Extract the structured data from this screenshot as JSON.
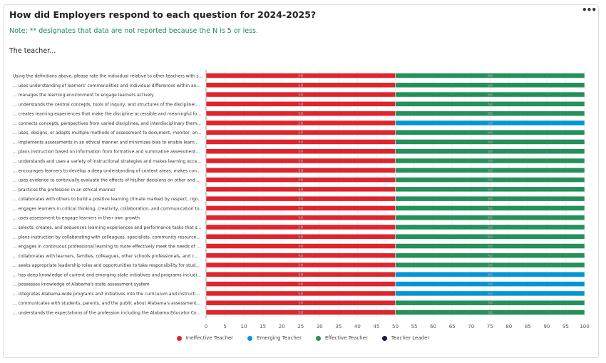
{
  "header": {
    "title": "How did Employers respond to each question for 2024-2025?",
    "note": "Note: ** designates that data are not reported because the N is 5 or less.",
    "subtitle": "The teacher...",
    "more_icon": "more-horizontal-icon"
  },
  "colors": {
    "Ineffective Teacher": "#e0242c",
    "Emerging Teacher": "#0096d6",
    "Effective Teacher": "#24905a",
    "Teacher Leader": "#141a46"
  },
  "chart_data": {
    "type": "bar",
    "orientation": "horizontal",
    "stacked": true,
    "xlim": [
      0,
      100
    ],
    "xticks": [
      0,
      5,
      10,
      15,
      20,
      25,
      30,
      35,
      40,
      45,
      50,
      55,
      60,
      65,
      70,
      75,
      80,
      85,
      90,
      95,
      100
    ],
    "grid": true,
    "legend_position": "bottom",
    "categories": [
      "Using the definitions above, please rate the individual relative to other teachers with s...",
      "... uses understanding of learners' commonalities and individual differences within an...",
      "... manages the learning environment to engage learners actively",
      "... understands the central concepts, tools of inquiry, and structures of the discipline(...",
      "... creates learning experiences that make the discipline accessible and meaningful fo...",
      "... connects concepts, perspectives from varied disciplines, and interdisciplinary them...",
      "... uses, designs, or adapts multiple methods of assessment to document, monitor, an...",
      "... implements assessments in an ethical manner and minimizes bias to enable learn...",
      "... plans instruction based on information from formative and summative assessment...",
      "... understands and uses a variety of instructional strategies and makes learning acce...",
      "... encourages learners to develop a deep understanding of content areas, makes con...",
      "... uses evidence to continually evaluate the effects of his/her decisions on other and ...",
      "... practices the profession in an ethical manner",
      "... collaborates with others to build a positive learning climate marked by respect, rigo...",
      "... engages learners in critical thinking, creativity, collaboration, and communication to...",
      "... uses assessment to engage learners in their own growth",
      "... selects, creates, and sequences learning experiences and performance tasks that s...",
      "... plans instruction by collaborating with colleagues, specialists, community resource...",
      "... engages in continuous professional learning to more effectively meet the needs of ...",
      "... collaborates with learners, families, colleagues, other schools professionals, and c...",
      "... seeks appropriate leadership roles and opportunities to take responsibility for stud...",
      "... has deep knowledge of current and emerging state initiatives and programs includi...",
      "... possesses knowledge of Alabama's state assessment system",
      "... integrates Alabama-wide programs and initiatives into the curriculum and instructi...",
      "... communicates with students, parents, and the public about Alabama's assessment...",
      "... understands the expectations of the profession including the Alabama Educator Co..."
    ],
    "series": [
      {
        "name": "Ineffective Teacher",
        "values": [
          50,
          50,
          50,
          50,
          50,
          50,
          50,
          50,
          50,
          50,
          50,
          50,
          50,
          50,
          50,
          50,
          50,
          50,
          50,
          50,
          50,
          50,
          50,
          50,
          50,
          50
        ]
      },
      {
        "name": "Emerging Teacher",
        "values": [
          0,
          0,
          0,
          0,
          0,
          50,
          0,
          0,
          0,
          0,
          0,
          0,
          0,
          0,
          0,
          0,
          0,
          0,
          0,
          0,
          0,
          50,
          50,
          50,
          0,
          0
        ]
      },
      {
        "name": "Effective Teacher",
        "values": [
          50,
          50,
          50,
          50,
          50,
          0,
          50,
          50,
          50,
          50,
          50,
          50,
          50,
          50,
          50,
          50,
          50,
          50,
          50,
          50,
          50,
          0,
          0,
          0,
          50,
          50
        ]
      },
      {
        "name": "Teacher Leader",
        "values": [
          0,
          0,
          0,
          0,
          0,
          0,
          0,
          0,
          0,
          0,
          0,
          0,
          0,
          0,
          0,
          0,
          0,
          0,
          0,
          0,
          0,
          0,
          0,
          0,
          0,
          0
        ]
      }
    ]
  }
}
